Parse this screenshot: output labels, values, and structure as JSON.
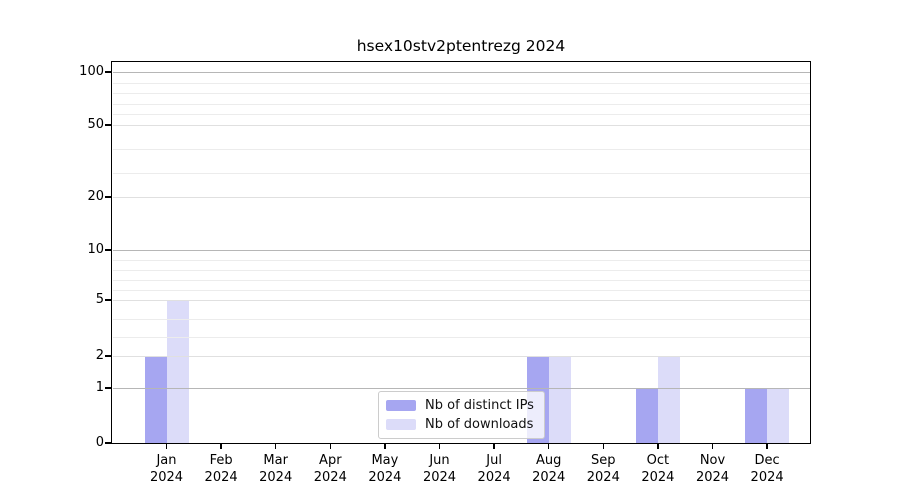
{
  "title": "hsex10stv2ptentrezg 2024",
  "legend": {
    "items": [
      {
        "label": "Nb of distinct IPs",
        "color": "#a6a6f1"
      },
      {
        "label": "Nb of downloads",
        "color": "#dcdcf9"
      }
    ]
  },
  "chart_data": {
    "type": "bar",
    "title": "hsex10stv2ptentrezg 2024",
    "categories": [
      "Jan 2024",
      "Feb 2024",
      "Mar 2024",
      "Apr 2024",
      "May 2024",
      "Jun 2024",
      "Jul 2024",
      "Aug 2024",
      "Sep 2024",
      "Oct 2024",
      "Nov 2024",
      "Dec 2024"
    ],
    "series": [
      {
        "name": "Nb of distinct IPs",
        "color": "#a6a6f1",
        "values": [
          2,
          0,
          0,
          0,
          0,
          0,
          0,
          2,
          0,
          1,
          0,
          1
        ]
      },
      {
        "name": "Nb of downloads",
        "color": "#dcdcf9",
        "values": [
          5,
          0,
          0,
          0,
          0,
          0,
          0,
          2,
          0,
          2,
          0,
          1
        ]
      }
    ],
    "xlabel": "",
    "ylabel": "",
    "yscale": "symlog",
    "ylim": [
      0,
      100
    ],
    "y_ticks": [
      0,
      1,
      2,
      5,
      10,
      20,
      50,
      100
    ],
    "y_major_gridlines": [
      1,
      10,
      100
    ],
    "y_mid_gridlines": [
      2,
      5,
      20,
      50
    ],
    "y_minor_gridlines": [
      3,
      4,
      6,
      7,
      8,
      9,
      30,
      40,
      60,
      70,
      80,
      90
    ],
    "grid": true,
    "legend_position": "lower center"
  }
}
